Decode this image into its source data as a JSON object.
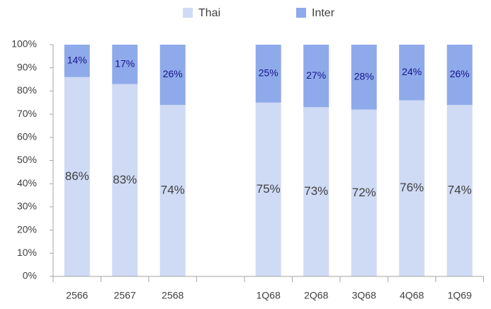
{
  "chart_data": {
    "type": "stacked-bar",
    "categories": [
      "2566",
      "2567",
      "2568",
      null,
      "1Q68",
      "2Q68",
      "3Q68",
      "4Q68",
      "1Q69"
    ],
    "series": [
      {
        "name": "Thai",
        "color": "#cfdaf5",
        "values": [
          86,
          83,
          74,
          null,
          75,
          73,
          72,
          76,
          74
        ],
        "value_labels": [
          "86%",
          "83%",
          "74%",
          null,
          "75%",
          "73%",
          "72%",
          "76%",
          "74%"
        ]
      },
      {
        "name": "Inter",
        "color": "#8faaea",
        "values": [
          14,
          17,
          26,
          null,
          25,
          27,
          28,
          24,
          26
        ],
        "value_labels": [
          "14%",
          "17%",
          "26%",
          null,
          "25%",
          "27%",
          "28%",
          "24%",
          "26%"
        ]
      }
    ],
    "ylim": [
      0,
      100
    ],
    "yticks": [
      {
        "value": 0,
        "label": "0%"
      },
      {
        "value": 10,
        "label": "10%"
      },
      {
        "value": 20,
        "label": "20%"
      },
      {
        "value": 30,
        "label": "30%"
      },
      {
        "value": 40,
        "label": "40%"
      },
      {
        "value": 50,
        "label": "50%"
      },
      {
        "value": 60,
        "label": "60%"
      },
      {
        "value": 70,
        "label": "70%"
      },
      {
        "value": 80,
        "label": "80%"
      },
      {
        "value": 90,
        "label": "90%"
      },
      {
        "value": 100,
        "label": "100%"
      }
    ],
    "grid": false,
    "legend": "top"
  }
}
